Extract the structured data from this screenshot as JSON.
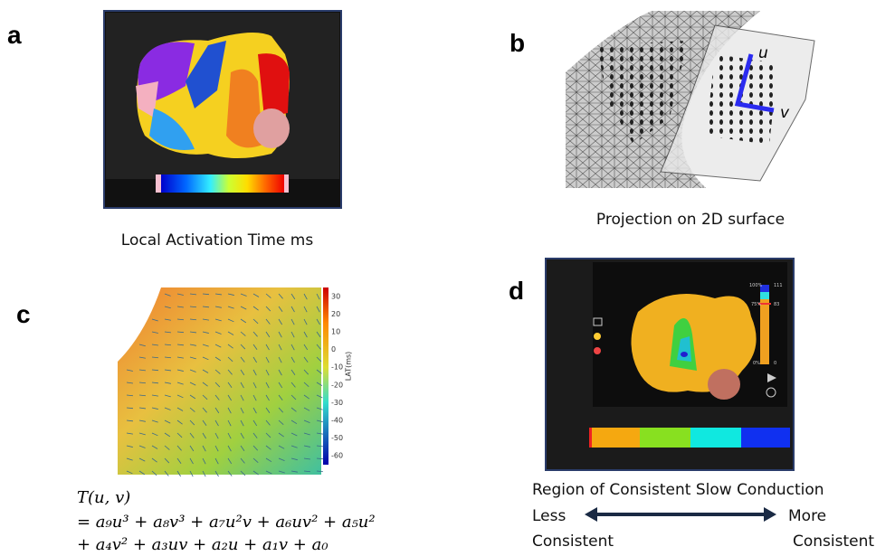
{
  "panels": {
    "a": {
      "letter": "a",
      "caption": "Local Activation Time ms"
    },
    "b": {
      "letter": "b",
      "caption": "Projection on 2D surface",
      "axis_u": "u",
      "axis_v": "v"
    },
    "c": {
      "letter": "c",
      "colorbar_ticks": [
        30,
        20,
        10,
        0,
        -10,
        -20,
        -30,
        -40,
        -50,
        -60
      ],
      "colorbar_label": "LAT(ms)",
      "equation": [
        "T(u, v)",
        "= a₉u³ + a₈v³ + a₇u²v + a₆uv² + a₅u²",
        "+ a₄v² +  a₃uv + a₂u + a₁v + a₀"
      ]
    },
    "d": {
      "letter": "d",
      "scale_top": "100%",
      "scale_top_value": "111",
      "scale_mid": "75%",
      "scale_mid_value": "83",
      "scale_bottom": "0%",
      "scale_bottom_value": "0",
      "caption": "Region of Consistent Slow Conduction",
      "left_word": "Less",
      "right_word": "More",
      "left_word2": "Consistent",
      "right_word2": "Consistent"
    }
  }
}
